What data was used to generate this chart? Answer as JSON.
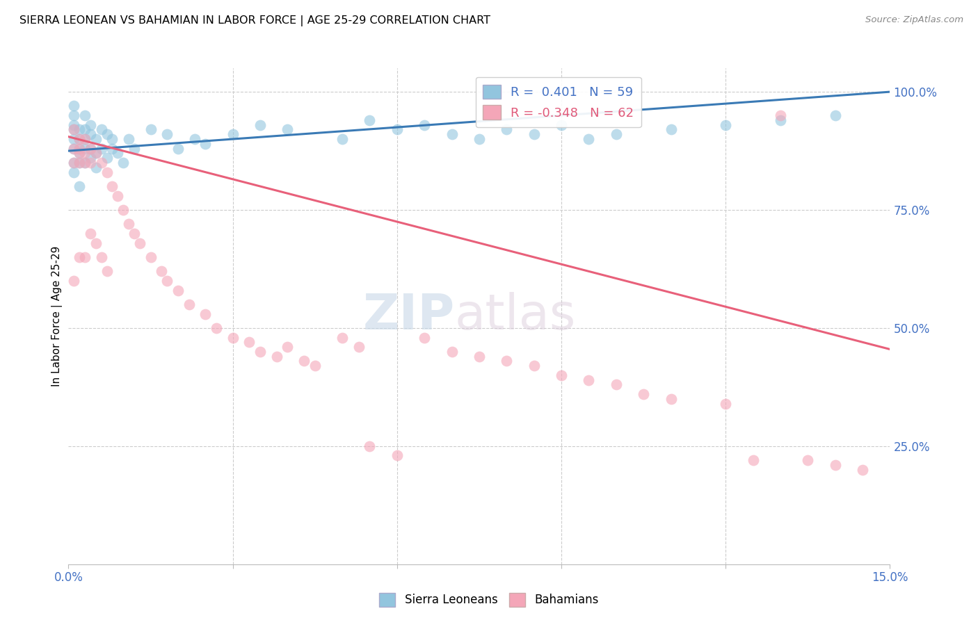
{
  "title": "SIERRA LEONEAN VS BAHAMIAN IN LABOR FORCE | AGE 25-29 CORRELATION CHART",
  "source": "Source: ZipAtlas.com",
  "ylabel": "In Labor Force | Age 25-29",
  "xlim": [
    0.0,
    0.15
  ],
  "ylim": [
    0.0,
    1.05
  ],
  "R_sierra": 0.401,
  "N_sierra": 59,
  "R_bahamian": -0.348,
  "N_bahamian": 62,
  "blue_color": "#92c5de",
  "pink_color": "#f4a6b8",
  "line_blue": "#3a7ab5",
  "line_pink": "#e8607a",
  "watermark_zip": "ZIP",
  "watermark_atlas": "atlas",
  "sierra_x": [
    0.001,
    0.001,
    0.001,
    0.001,
    0.001,
    0.001,
    0.001,
    0.001,
    0.002,
    0.002,
    0.002,
    0.002,
    0.002,
    0.002,
    0.003,
    0.003,
    0.003,
    0.003,
    0.003,
    0.004,
    0.004,
    0.004,
    0.004,
    0.005,
    0.005,
    0.005,
    0.006,
    0.006,
    0.007,
    0.007,
    0.008,
    0.008,
    0.009,
    0.01,
    0.011,
    0.012,
    0.015,
    0.018,
    0.02,
    0.023,
    0.025,
    0.03,
    0.035,
    0.04,
    0.05,
    0.055,
    0.06,
    0.065,
    0.07,
    0.075,
    0.08,
    0.085,
    0.09,
    0.095,
    0.1,
    0.11,
    0.12,
    0.13,
    0.14
  ],
  "sierra_y": [
    0.88,
    0.9,
    0.92,
    0.93,
    0.95,
    0.97,
    0.85,
    0.83,
    0.88,
    0.9,
    0.92,
    0.87,
    0.85,
    0.8,
    0.9,
    0.92,
    0.88,
    0.85,
    0.95,
    0.91,
    0.88,
    0.86,
    0.93,
    0.9,
    0.87,
    0.84,
    0.92,
    0.88,
    0.91,
    0.86,
    0.9,
    0.88,
    0.87,
    0.85,
    0.9,
    0.88,
    0.92,
    0.91,
    0.88,
    0.9,
    0.89,
    0.91,
    0.93,
    0.92,
    0.9,
    0.94,
    0.92,
    0.93,
    0.91,
    0.9,
    0.92,
    0.91,
    0.93,
    0.9,
    0.91,
    0.92,
    0.93,
    0.94,
    0.95
  ],
  "bahamian_x": [
    0.001,
    0.001,
    0.001,
    0.001,
    0.002,
    0.002,
    0.002,
    0.002,
    0.002,
    0.003,
    0.003,
    0.003,
    0.003,
    0.004,
    0.004,
    0.004,
    0.005,
    0.005,
    0.006,
    0.006,
    0.007,
    0.007,
    0.008,
    0.009,
    0.01,
    0.011,
    0.012,
    0.013,
    0.015,
    0.017,
    0.018,
    0.02,
    0.022,
    0.025,
    0.027,
    0.03,
    0.033,
    0.035,
    0.038,
    0.04,
    0.043,
    0.045,
    0.05,
    0.053,
    0.055,
    0.06,
    0.065,
    0.07,
    0.075,
    0.08,
    0.085,
    0.09,
    0.095,
    0.1,
    0.105,
    0.11,
    0.12,
    0.125,
    0.13,
    0.135,
    0.14,
    0.145
  ],
  "bahamian_y": [
    0.92,
    0.88,
    0.85,
    0.6,
    0.9,
    0.88,
    0.87,
    0.85,
    0.65,
    0.9,
    0.87,
    0.85,
    0.65,
    0.88,
    0.85,
    0.7,
    0.87,
    0.68,
    0.85,
    0.65,
    0.83,
    0.62,
    0.8,
    0.78,
    0.75,
    0.72,
    0.7,
    0.68,
    0.65,
    0.62,
    0.6,
    0.58,
    0.55,
    0.53,
    0.5,
    0.48,
    0.47,
    0.45,
    0.44,
    0.46,
    0.43,
    0.42,
    0.48,
    0.46,
    0.25,
    0.23,
    0.48,
    0.45,
    0.44,
    0.43,
    0.42,
    0.4,
    0.39,
    0.38,
    0.36,
    0.35,
    0.34,
    0.22,
    0.95,
    0.22,
    0.21,
    0.2
  ]
}
